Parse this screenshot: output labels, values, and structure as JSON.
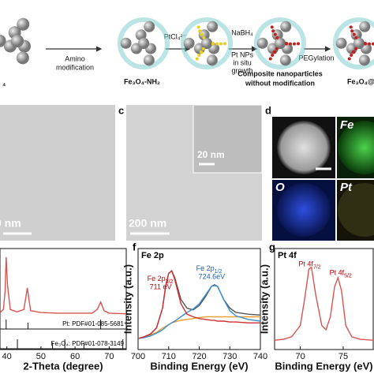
{
  "schematic": {
    "step1": [
      "Amino",
      "modification"
    ],
    "step2": "PtCl₄²⁻",
    "step3": [
      "NaBH₄",
      "Pt NPs",
      "in situ",
      "growth"
    ],
    "step4": "PEGylation",
    "product0": "₄",
    "product1": "Fe₃O₄-NH₂",
    "product2": [
      "Composite nanoparticles",
      "without modification"
    ],
    "product3": "Fe₃O₄@"
  },
  "images": {
    "b_scale": "0 nm",
    "c_scale": "200 nm",
    "inset_scale": "20 nm",
    "c_label": "c",
    "d_label": "d",
    "map_labels": [
      "Fe",
      "O",
      "Pt"
    ]
  },
  "chart_data": [
    {
      "type": "line",
      "x_label": "2-Theta (degree)",
      "x": [
        38,
        39,
        39.5,
        39.8,
        40.2,
        41,
        43,
        45,
        46,
        46.5,
        47,
        50,
        55,
        60,
        65,
        66.5,
        67.5,
        68.5,
        70,
        75
      ],
      "series": [
        {
          "color": "#d9534f",
          "values": [
            5,
            10,
            40,
            95,
            50,
            10,
            6,
            10,
            45,
            25,
            8,
            5,
            4,
            4,
            4,
            10,
            22,
            8,
            4,
            3
          ]
        }
      ],
      "references": [
        {
          "label": "Pt: PDF#01-085-5681",
          "positions": [
            39.8,
            46.2,
            67.5
          ]
        },
        {
          "label": "Fe₃O₄: PDF#01-078-3149",
          "positions": [
            43.1,
            53.4,
            57,
            62.6,
            74
          ]
        }
      ],
      "xlim": [
        38,
        75
      ],
      "ylim": [
        0,
        100
      ],
      "xticks": [
        40,
        50,
        60,
        70
      ]
    },
    {
      "type": "line",
      "label": "f",
      "title": "Fe 2p",
      "x_label": "Binding Energy (eV)",
      "y_label": "Intensity (a.u.)",
      "x": [
        700,
        702,
        704,
        706,
        708,
        709,
        710,
        711,
        712,
        714,
        716,
        718,
        720,
        722,
        724,
        725,
        726,
        728,
        730,
        732,
        736,
        740
      ],
      "series": [
        {
          "color": "#555555",
          "values": [
            10,
            12,
            15,
            22,
            45,
            70,
            85,
            88,
            80,
            55,
            45,
            43,
            48,
            58,
            70,
            72,
            70,
            55,
            45,
            40,
            38,
            37
          ]
        },
        {
          "color": "#f0a030",
          "values": [
            10,
            12,
            14,
            17,
            22,
            24,
            26,
            28,
            29,
            31,
            32,
            33,
            34,
            35,
            35,
            35,
            35,
            35,
            35,
            35,
            35,
            35
          ]
        },
        {
          "color": "#3a8fd0",
          "values": [
            10,
            11,
            13,
            16,
            20,
            23,
            26,
            28,
            30,
            35,
            40,
            44,
            50,
            60,
            70,
            71,
            70,
            55,
            42,
            36,
            32,
            30
          ]
        },
        {
          "color": "#d03030",
          "values": [
            10,
            12,
            15,
            22,
            45,
            70,
            85,
            88,
            78,
            50,
            38,
            35,
            33,
            32,
            31,
            31,
            30,
            30,
            29,
            29,
            28,
            28
          ]
        }
      ],
      "annotations": [
        {
          "text": "Fe 2p",
          "sub": "3/2",
          "line2": "711 eV",
          "color": "#c00000",
          "x": 703,
          "y": 78
        },
        {
          "text": "Fe 2p",
          "sub": "1/2",
          "line2": "724.6eV",
          "color": "#1f5fb0",
          "x": 719,
          "y": 90
        }
      ],
      "xlim": [
        700,
        740
      ],
      "ylim": [
        0,
        100
      ],
      "xticks": [
        700,
        710,
        720,
        730,
        740
      ]
    },
    {
      "type": "line",
      "label": "g",
      "title": "Pt 4f",
      "x_label": "Binding Energy (eV)",
      "y_label": "Intensity (a.u.)",
      "x": [
        67,
        68,
        69,
        70,
        70.5,
        71,
        71.3,
        71.8,
        72.5,
        73,
        73.5,
        74,
        74.4,
        74.8,
        75.3,
        76,
        77,
        78.5
      ],
      "series": [
        {
          "color": "#d9534f",
          "values": [
            8,
            9,
            12,
            25,
            55,
            90,
            92,
            60,
            25,
            20,
            35,
            70,
            80,
            65,
            25,
            12,
            9,
            8
          ]
        }
      ],
      "annotations": [
        {
          "text": "Pt 4f",
          "sub": "7/2",
          "color": "#c00000",
          "x": 69.8,
          "y": 95
        },
        {
          "text": "Pt 4f",
          "sub": "5/2",
          "color": "#c00000",
          "x": 73.4,
          "y": 85
        }
      ],
      "xlim": [
        67,
        78.5
      ],
      "ylim": [
        0,
        100
      ],
      "xticks": [
        70,
        75
      ]
    }
  ]
}
